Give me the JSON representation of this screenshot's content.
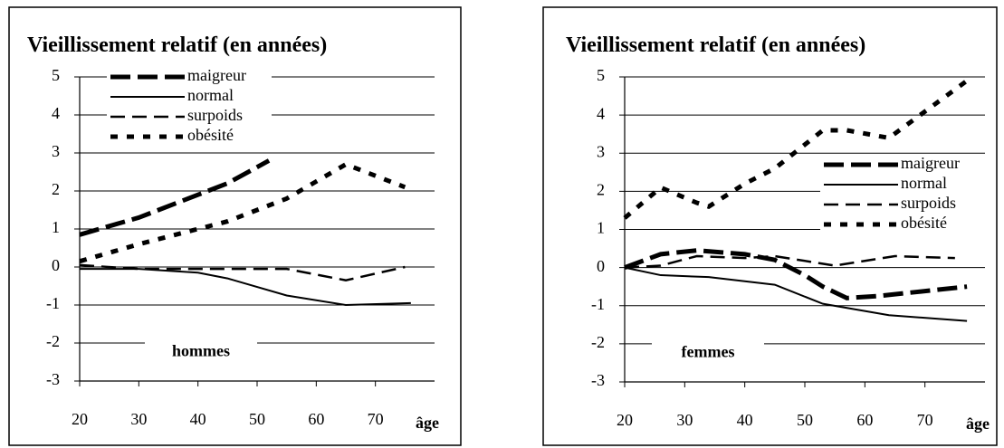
{
  "chart_data": [
    {
      "type": "line",
      "title": "Vieillissement relatif (en années)",
      "xlabel": "âge",
      "annotation": "hommes",
      "xlim": [
        20,
        80
      ],
      "xticks": [
        20,
        30,
        40,
        50,
        60,
        70
      ],
      "ylim": [
        -3,
        5
      ],
      "yticks": [
        -3,
        -2,
        -1,
        0,
        1,
        2,
        3,
        4,
        5
      ],
      "grid": true,
      "legend": "upper left",
      "series": [
        {
          "name": "maigreur",
          "color": "#000000",
          "style": "long-dash",
          "x": [
            20,
            30,
            40,
            45,
            52
          ],
          "values": [
            0.85,
            1.3,
            1.9,
            2.2,
            2.8
          ]
        },
        {
          "name": "normal",
          "color": "#000000",
          "style": "solid",
          "x": [
            20,
            30,
            40,
            45,
            55,
            65,
            76
          ],
          "values": [
            -0.05,
            -0.05,
            -0.15,
            -0.3,
            -0.75,
            -1.0,
            -0.95
          ]
        },
        {
          "name": "surpoids",
          "color": "#000000",
          "style": "dash",
          "x": [
            20,
            30,
            40,
            55,
            65,
            75
          ],
          "values": [
            0.05,
            -0.05,
            -0.05,
            -0.05,
            -0.35,
            0.0
          ]
        },
        {
          "name": "obésité",
          "color": "#000000",
          "style": "dot",
          "x": [
            20,
            30,
            40,
            45,
            55,
            65,
            75
          ],
          "values": [
            0.15,
            0.6,
            1.0,
            1.2,
            1.8,
            2.7,
            2.1
          ]
        }
      ]
    },
    {
      "type": "line",
      "title": "Vieillissement relatif (en années)",
      "xlabel": "âge",
      "annotation": "femmes",
      "xlim": [
        20,
        80
      ],
      "xticks": [
        20,
        30,
        40,
        50,
        60,
        70
      ],
      "ylim": [
        -3,
        5
      ],
      "yticks": [
        -3,
        -2,
        -1,
        0,
        1,
        2,
        3,
        4,
        5
      ],
      "grid": true,
      "legend": "center right",
      "series": [
        {
          "name": "maigreur",
          "color": "#000000",
          "style": "long-dash",
          "x": [
            20,
            26,
            32,
            40,
            45,
            50,
            53,
            57,
            62,
            77
          ],
          "values": [
            0,
            0.35,
            0.45,
            0.35,
            0.2,
            -0.2,
            -0.5,
            -0.8,
            -0.75,
            -0.5
          ]
        },
        {
          "name": "normal",
          "color": "#000000",
          "style": "solid",
          "x": [
            20,
            26,
            34,
            45,
            53,
            64,
            77
          ],
          "values": [
            0,
            -0.2,
            -0.25,
            -0.45,
            -0.95,
            -1.25,
            -1.4
          ]
        },
        {
          "name": "surpoids",
          "color": "#000000",
          "style": "dash",
          "x": [
            20,
            26,
            32,
            40,
            45,
            55,
            65,
            75
          ],
          "values": [
            0,
            0.05,
            0.3,
            0.25,
            0.3,
            0.05,
            0.3,
            0.25
          ]
        },
        {
          "name": "obésité",
          "color": "#000000",
          "style": "dot",
          "x": [
            20,
            26,
            32,
            34,
            40,
            45,
            53,
            57,
            64,
            77
          ],
          "values": [
            1.3,
            2.1,
            1.7,
            1.6,
            2.2,
            2.6,
            3.6,
            3.6,
            3.4,
            4.9
          ]
        }
      ]
    }
  ]
}
